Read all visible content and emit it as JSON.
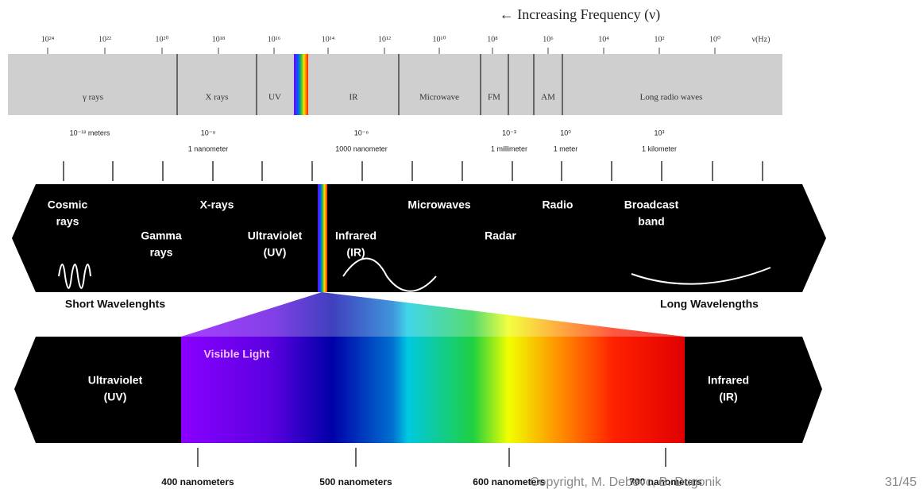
{
  "header": {
    "frequency_title": "← Increasing Frequency (ν)",
    "frequency_ticks": [
      "10²⁴",
      "10²²",
      "10²⁰",
      "10¹⁸",
      "10¹⁶",
      "10¹⁴",
      "10¹²",
      "10¹⁰",
      "10⁸",
      "10⁶",
      "10⁴",
      "10²",
      "10⁰",
      "ν(Hz)"
    ],
    "bands": [
      "γ rays",
      "X rays",
      "UV",
      "IR",
      "Microwave",
      "FM",
      "AM",
      "Long radio waves"
    ]
  },
  "wavelength_ticks": [
    [
      "10⁻¹² meters"
    ],
    [
      "10⁻⁹",
      "1 nanometer"
    ],
    [
      "10⁻⁶",
      "1000 nanometer"
    ],
    [
      "10⁻³",
      "1 millimeter"
    ],
    [
      "10⁰",
      "1 meter"
    ],
    [
      "10³",
      "1 kilometer"
    ]
  ],
  "spectrum": {
    "labels": [
      [
        "Cosmic",
        "rays"
      ],
      [
        "X-rays"
      ],
      [
        "Gamma",
        "rays"
      ],
      [
        "Ultraviolet",
        "(UV)"
      ],
      [
        "Infrared",
        "(IR)"
      ],
      [
        "Microwaves"
      ],
      [
        "Radar"
      ],
      [
        "Radio"
      ],
      [
        "Broadcast",
        "band"
      ]
    ],
    "short": "Short Wavelenghts",
    "long": "Long Wavelengths"
  },
  "visible": {
    "title": "Visible Light",
    "left": [
      "Ultraviolet",
      "(UV)"
    ],
    "right": [
      "Infrared",
      "(IR)"
    ],
    "ticks": [
      "400 nanometers",
      "500 nanometers",
      "600 nanometers",
      "700 nanometers"
    ]
  },
  "footer": {
    "copyright": "Copyright, M. Debevc, B. Dugonik",
    "page": "31/45"
  }
}
